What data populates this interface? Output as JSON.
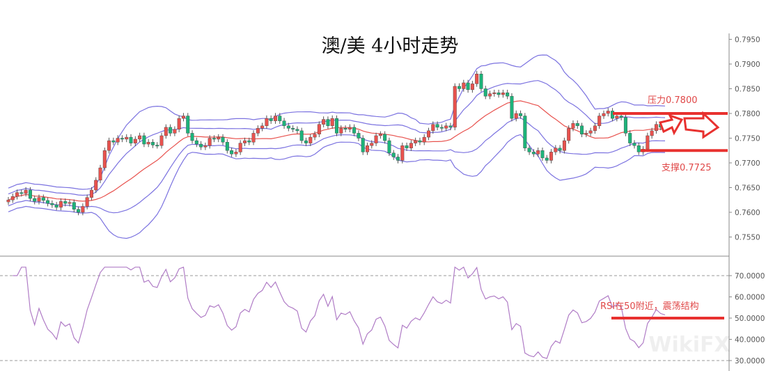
{
  "chart_data": [
    {
      "type": "candlestick",
      "title": "澳/美 4小时走势",
      "ylim": [
        0.7525,
        0.7975
      ],
      "yticks": [
        "0.7950",
        "0.7900",
        "0.7850",
        "0.7800",
        "0.7750",
        "0.7700",
        "0.7650",
        "0.7600",
        "0.7550"
      ],
      "up_color": "#e8524e",
      "down_color": "#1db37a",
      "close": [
        0.7625,
        0.7632,
        0.764,
        0.7638,
        0.7645,
        0.7628,
        0.7622,
        0.763,
        0.7624,
        0.7618,
        0.7615,
        0.761,
        0.7622,
        0.7618,
        0.762,
        0.7606,
        0.76,
        0.7612,
        0.763,
        0.7645,
        0.7665,
        0.769,
        0.7725,
        0.7745,
        0.7742,
        0.775,
        0.7748,
        0.7752,
        0.774,
        0.7748,
        0.7755,
        0.7738,
        0.7742,
        0.7736,
        0.7735,
        0.7755,
        0.7772,
        0.776,
        0.7768,
        0.779,
        0.7795,
        0.776,
        0.7745,
        0.7738,
        0.7732,
        0.7735,
        0.775,
        0.7748,
        0.7752,
        0.7742,
        0.7725,
        0.7718,
        0.7722,
        0.774,
        0.7745,
        0.7742,
        0.776,
        0.777,
        0.7775,
        0.779,
        0.7785,
        0.7795,
        0.7785,
        0.7775,
        0.777,
        0.7768,
        0.7765,
        0.7745,
        0.774,
        0.7752,
        0.7758,
        0.7778,
        0.7788,
        0.7775,
        0.779,
        0.776,
        0.777,
        0.7768,
        0.7772,
        0.776,
        0.775,
        0.7722,
        0.7735,
        0.774,
        0.7755,
        0.7758,
        0.7745,
        0.772,
        0.7712,
        0.7705,
        0.7735,
        0.773,
        0.774,
        0.7745,
        0.7742,
        0.7752,
        0.7765,
        0.7778,
        0.7772,
        0.777,
        0.7775,
        0.7772,
        0.7855,
        0.785,
        0.7862,
        0.7848,
        0.786,
        0.788,
        0.785,
        0.7835,
        0.784,
        0.7842,
        0.7838,
        0.7842,
        0.7835,
        0.779,
        0.78,
        0.7795,
        0.773,
        0.7722,
        0.7718,
        0.7725,
        0.771,
        0.7705,
        0.7722,
        0.773,
        0.7725,
        0.7745,
        0.777,
        0.778,
        0.7775,
        0.7758,
        0.776,
        0.7765,
        0.7775,
        0.7795,
        0.78,
        0.7805,
        0.779,
        0.7795,
        0.7792,
        0.776,
        0.774,
        0.7735,
        0.7722,
        0.7728,
        0.7755,
        0.7765,
        0.7778,
        0.7772,
        0.777
      ],
      "indicators": {
        "bollinger": {
          "period": 20,
          "stddev": 2,
          "band_color": "#7b72e0",
          "mid_color": "#e8524e"
        }
      },
      "annotations": {
        "resistance": {
          "label": "压力0.7800",
          "value": 0.78
        },
        "support": {
          "label": "支撑0.7725",
          "value": 0.7725
        },
        "color": "#e8312f"
      }
    },
    {
      "type": "line",
      "name": "RSI",
      "ylim": [
        28,
        76
      ],
      "yticks": [
        "70.0000",
        "60.0000",
        "50.0000",
        "40.0000",
        "30.0000"
      ],
      "reference_lines": [
        70,
        30
      ],
      "line_color": "#b07cc6",
      "annotation": {
        "label": "RSI在50附近，震荡结构",
        "value": 50
      }
    }
  ],
  "watermark": "WikiFX"
}
